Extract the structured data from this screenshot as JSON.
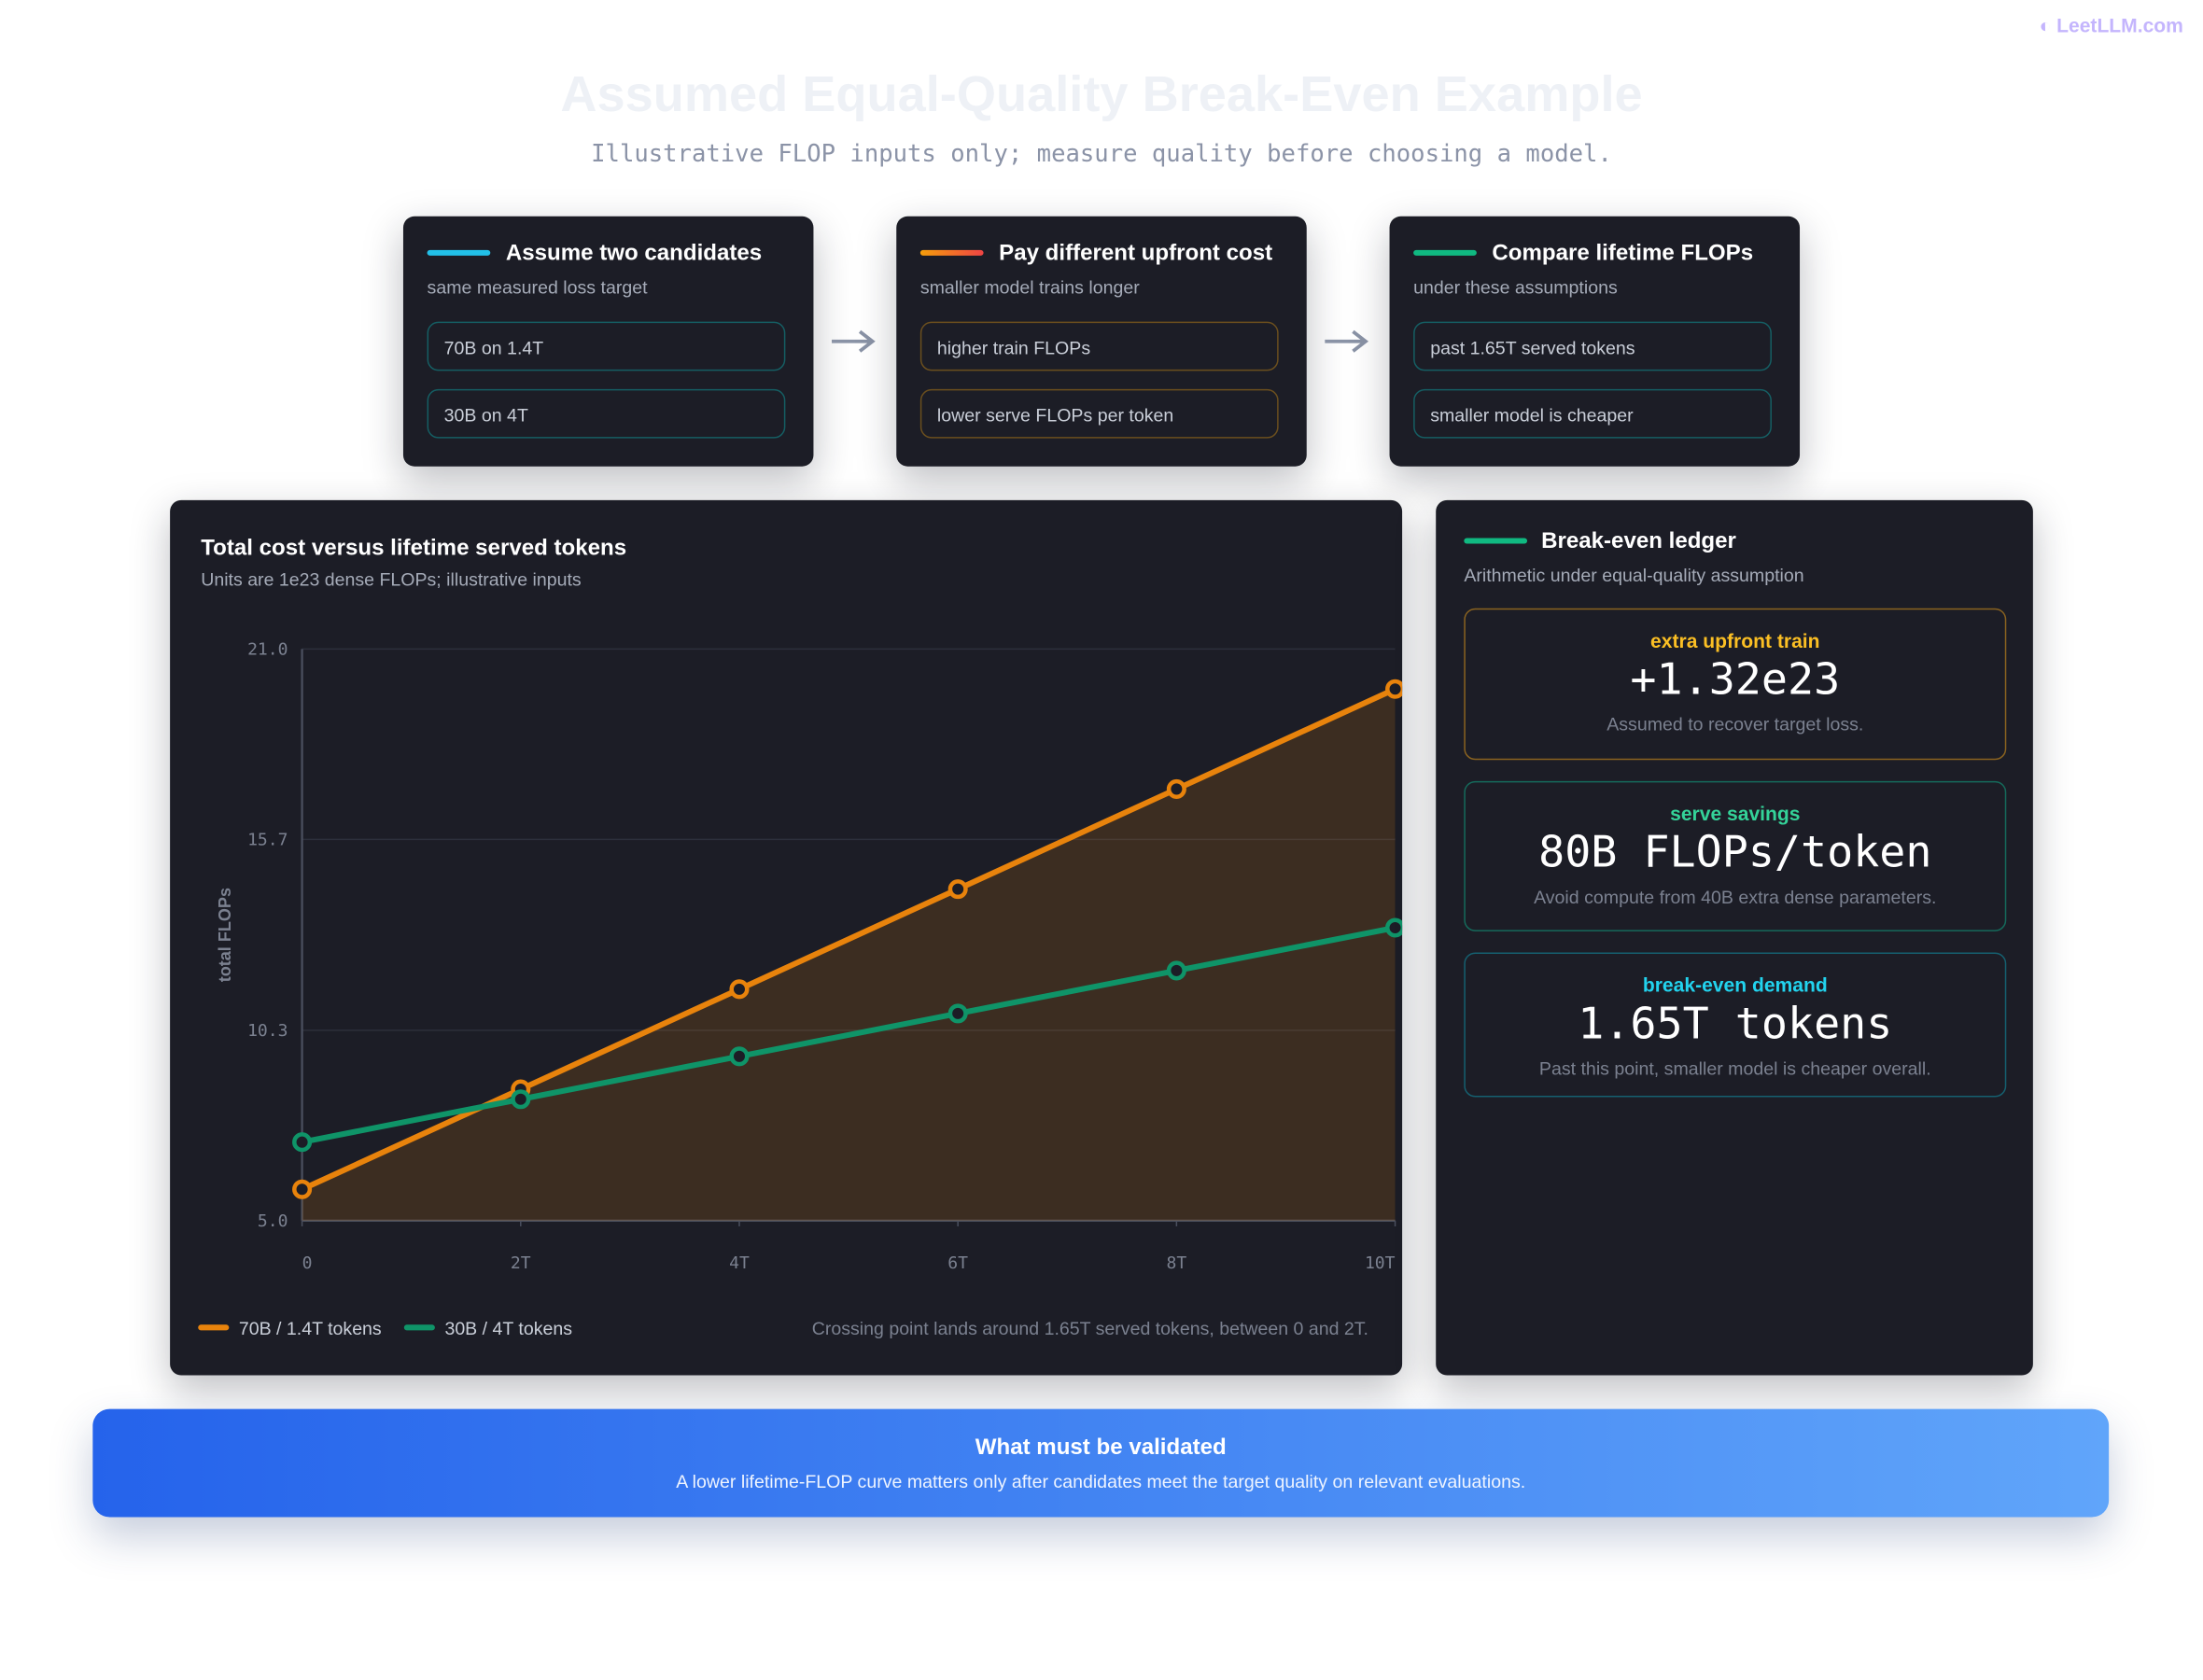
{
  "watermark": "LeetLLM.com",
  "header": {
    "title": "Assumed Equal-Quality Break-Even Example",
    "subtitle": "Illustrative FLOP inputs only; measure quality before choosing a model."
  },
  "steps": [
    {
      "title": "Assume two candidates",
      "subtitle": "same measured loss target",
      "items": [
        "70B on 1.4T",
        "30B on 4T"
      ]
    },
    {
      "title": "Pay different upfront cost",
      "subtitle": "smaller model trains longer",
      "items": [
        "higher train FLOPs",
        "lower serve FLOPs per token"
      ]
    },
    {
      "title": "Compare lifetime FLOPs",
      "subtitle": "under these assumptions",
      "items": [
        "past 1.65T served tokens",
        "smaller model is cheaper"
      ]
    }
  ],
  "chart_data": {
    "type": "line",
    "title": "Total cost versus lifetime served tokens",
    "subtitle": "Units are 1e23 dense FLOPs; illustrative inputs",
    "y_label": "total FLOPs",
    "x": [
      0,
      2,
      4,
      6,
      8,
      10
    ],
    "xlim": [
      0,
      10
    ],
    "xticks": [
      0,
      {
        "value": 2,
        "label": "2T"
      },
      {
        "value": 4,
        "label": "4T"
      },
      {
        "value": 6,
        "label": "6T"
      },
      {
        "value": 8,
        "label": "8T"
      },
      {
        "value": 10,
        "label": "10T"
      }
    ],
    "ylim": [
      5,
      21
    ],
    "yticks": [
      {
        "value": 5,
        "label": "5.0"
      },
      {
        "value": 10.33,
        "label": "10.3"
      },
      {
        "value": 15.67,
        "label": "15.7"
      },
      {
        "value": 21,
        "label": "21.0"
      }
    ],
    "grid": true,
    "series": [
      {
        "name": "70B / 1.4T tokens",
        "color": "#e8830c",
        "values": [
          5.88,
          8.68,
          11.48,
          14.28,
          17.08,
          19.88
        ]
      },
      {
        "name": "30B / 4T tokens",
        "color": "#0f9468",
        "values": [
          7.2,
          8.4,
          9.6,
          10.8,
          12.0,
          13.2
        ]
      }
    ],
    "note": "Crossing point lands around 1.65T served tokens, between 0 and 2T."
  },
  "ledger": {
    "title": "Break-even ledger",
    "subtitle": "Arithmetic under equal-quality assumption",
    "cards": [
      {
        "label": "extra upfront train",
        "value": "+1.32e23",
        "caption": "Assumed to recover target loss."
      },
      {
        "label": "serve savings",
        "value": "80B FLOPs/token",
        "caption": "Avoid compute from 40B extra dense parameters."
      },
      {
        "label": "break-even demand",
        "value": "1.65T tokens",
        "caption": "Past this point, smaller model is cheaper overall."
      }
    ]
  },
  "banner": {
    "title": "What must be validated",
    "text": "A lower lifetime-FLOP curve matters only after candidates meet the target quality on relevant evaluations."
  }
}
